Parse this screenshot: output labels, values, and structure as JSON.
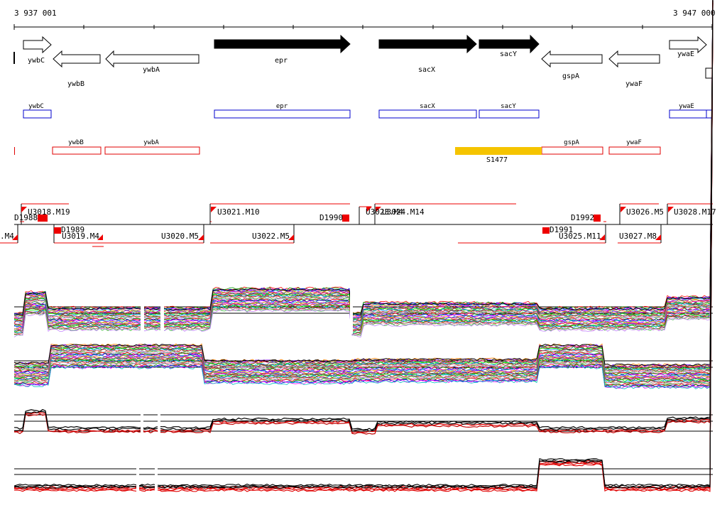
{
  "ruler": {
    "start_label": "3 937 001",
    "end_label": "3 947 000"
  },
  "genes": [
    {
      "name": "ywbC",
      "strand": "+",
      "fill": "white"
    },
    {
      "name": "ywbB",
      "strand": "-",
      "fill": "white"
    },
    {
      "name": "ywbA",
      "strand": "-",
      "fill": "white"
    },
    {
      "name": "epr",
      "strand": "+",
      "fill": "black"
    },
    {
      "name": "sacX",
      "strand": "+",
      "fill": "black"
    },
    {
      "name": "sacY",
      "strand": "+",
      "fill": "black"
    },
    {
      "name": "gspA",
      "strand": "-",
      "fill": "white"
    },
    {
      "name": "ywaF",
      "strand": "-",
      "fill": "white"
    },
    {
      "name": "ywaE",
      "strand": "+",
      "fill": "white"
    }
  ],
  "forward_boxes": [
    "ywbC",
    "epr",
    "sacX",
    "sacY",
    "ywaE"
  ],
  "reverse_boxes": [
    "ywbB",
    "ywbA",
    "gspA",
    "ywaF"
  ],
  "feature": {
    "label": "S1477",
    "color": "#f5c400"
  },
  "upper_segments": [
    "D1988",
    "U3018.M19",
    "U3021.M10",
    "D1990",
    "U3023.M4",
    "U3024.M14",
    "D1992",
    "U3026.M5",
    "U3028.M17"
  ],
  "lower_segments": [
    ".M4",
    "D1989",
    "U3019.M4",
    "U3020.M5",
    "U3022.M5",
    "D1991",
    "U3025.M11",
    "U3027.M8"
  ],
  "colors": {
    "gene_outline": "#0000cc",
    "reverse_outline": "#e00000",
    "segment": "#ee0000"
  }
}
